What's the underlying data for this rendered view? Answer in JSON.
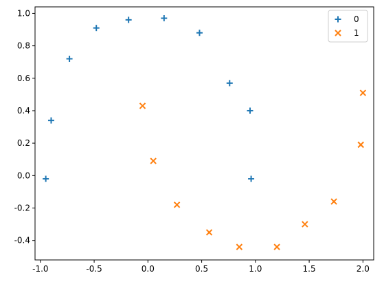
{
  "chart_data": {
    "type": "scatter",
    "title": "",
    "xlabel": "",
    "ylabel": "",
    "xlim": [
      -1.05,
      2.1
    ],
    "ylim": [
      -0.52,
      1.04
    ],
    "xticks": [
      "-1.0",
      "-0.5",
      "0.0",
      "0.5",
      "1.0",
      "1.5",
      "2.0"
    ],
    "yticks": [
      "-0.4",
      "-0.2",
      "0.0",
      "0.2",
      "0.4",
      "0.6",
      "0.8",
      "1.0"
    ],
    "grid": false,
    "legend_position": "top-right",
    "series": [
      {
        "name": "0",
        "marker": "plus",
        "color": "#1f77b4",
        "points": [
          {
            "x": -0.95,
            "y": -0.02
          },
          {
            "x": -0.9,
            "y": 0.34
          },
          {
            "x": -0.73,
            "y": 0.72
          },
          {
            "x": -0.48,
            "y": 0.91
          },
          {
            "x": -0.18,
            "y": 0.96
          },
          {
            "x": 0.15,
            "y": 0.97
          },
          {
            "x": 0.48,
            "y": 0.88
          },
          {
            "x": 0.76,
            "y": 0.57
          },
          {
            "x": 0.95,
            "y": 0.4
          },
          {
            "x": 0.96,
            "y": -0.02
          }
        ]
      },
      {
        "name": "1",
        "marker": "x",
        "color": "#ff7f0e",
        "points": [
          {
            "x": -0.05,
            "y": 0.43
          },
          {
            "x": 0.05,
            "y": 0.09
          },
          {
            "x": 0.27,
            "y": -0.18
          },
          {
            "x": 0.57,
            "y": -0.35
          },
          {
            "x": 0.85,
            "y": -0.44
          },
          {
            "x": 1.2,
            "y": -0.44
          },
          {
            "x": 1.46,
            "y": -0.3
          },
          {
            "x": 1.73,
            "y": -0.16
          },
          {
            "x": 1.98,
            "y": 0.19
          },
          {
            "x": 2.0,
            "y": 0.51
          }
        ]
      }
    ]
  }
}
